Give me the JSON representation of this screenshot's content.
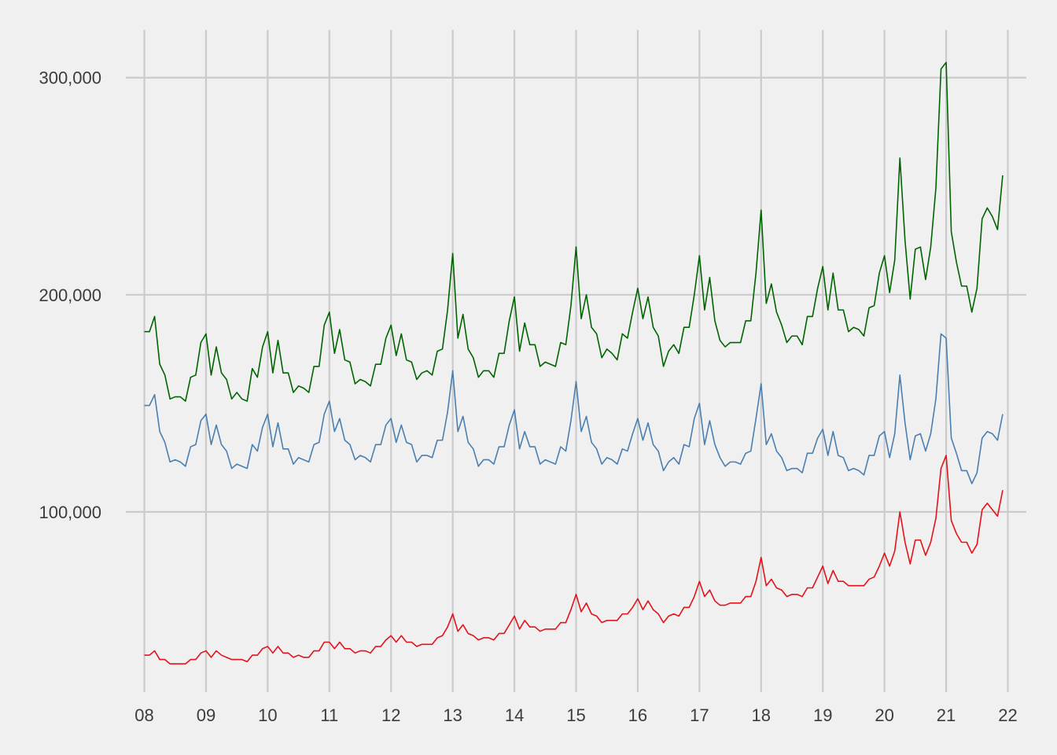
{
  "chart_data": {
    "type": "line",
    "title": "",
    "xlabel": "",
    "ylabel": "",
    "x_start": 2008.0,
    "x_step_months": 1,
    "xlim": [
      2007.7,
      2022.3
    ],
    "ylim": [
      17000,
      322000
    ],
    "x_ticks": [
      {
        "value": 2008,
        "label": "08"
      },
      {
        "value": 2009,
        "label": "09"
      },
      {
        "value": 2010,
        "label": "10"
      },
      {
        "value": 2011,
        "label": "11"
      },
      {
        "value": 2012,
        "label": "12"
      },
      {
        "value": 2013,
        "label": "13"
      },
      {
        "value": 2014,
        "label": "14"
      },
      {
        "value": 2015,
        "label": "15"
      },
      {
        "value": 2016,
        "label": "16"
      },
      {
        "value": 2017,
        "label": "17"
      },
      {
        "value": 2018,
        "label": "18"
      },
      {
        "value": 2019,
        "label": "19"
      },
      {
        "value": 2020,
        "label": "20"
      },
      {
        "value": 2021,
        "label": "21"
      },
      {
        "value": 2022,
        "label": "22"
      }
    ],
    "y_ticks": [
      {
        "value": 100000,
        "label": "100,000"
      },
      {
        "value": 200000,
        "label": "200,000"
      },
      {
        "value": 300000,
        "label": "300,000"
      }
    ],
    "grid": true,
    "legend": "none",
    "series": [
      {
        "color": "#006400",
        "values": [
          183000,
          183000,
          190000,
          168000,
          163000,
          152000,
          153000,
          153000,
          151000,
          162000,
          163000,
          178000,
          182000,
          163000,
          176000,
          164000,
          161000,
          152000,
          155000,
          152000,
          151000,
          166000,
          162000,
          176000,
          183000,
          164000,
          179000,
          164000,
          164000,
          155000,
          158000,
          157000,
          155000,
          167000,
          167000,
          186000,
          192000,
          173000,
          184000,
          170000,
          169000,
          159000,
          161000,
          160000,
          158000,
          168000,
          168000,
          180000,
          186000,
          172000,
          182000,
          170000,
          169000,
          161000,
          164000,
          165000,
          163000,
          174000,
          175000,
          193000,
          219000,
          180000,
          191000,
          175000,
          171000,
          162000,
          165000,
          165000,
          162000,
          173000,
          173000,
          188000,
          199000,
          174000,
          187000,
          177000,
          177000,
          167000,
          169000,
          168000,
          167000,
          178000,
          177000,
          195000,
          222000,
          189000,
          200000,
          185000,
          182000,
          171000,
          175000,
          173000,
          170000,
          182000,
          180000,
          192000,
          203000,
          189000,
          199000,
          185000,
          181000,
          167000,
          174000,
          177000,
          173000,
          185000,
          185000,
          200000,
          218000,
          193000,
          208000,
          188000,
          179000,
          176000,
          178000,
          178000,
          178000,
          188000,
          188000,
          210000,
          239000,
          196000,
          205000,
          192000,
          186000,
          178000,
          181000,
          181000,
          177000,
          190000,
          190000,
          203000,
          213000,
          193000,
          210000,
          193000,
          193000,
          183000,
          185000,
          184000,
          181000,
          194000,
          195000,
          210000,
          218000,
          201000,
          216000,
          263000,
          225000,
          198000,
          221000,
          222000,
          207000,
          222000,
          249000,
          304000,
          307000,
          229000,
          215000,
          204000,
          204000,
          192000,
          203000,
          235000,
          240000,
          236000,
          230000,
          255000
        ]
      },
      {
        "color": "#4a7fb0",
        "values": [
          149000,
          149000,
          154000,
          137000,
          132000,
          123000,
          124000,
          123000,
          121000,
          130000,
          131000,
          142000,
          145000,
          131000,
          140000,
          131000,
          128000,
          120000,
          122000,
          121000,
          120000,
          131000,
          128000,
          139000,
          145000,
          130000,
          141000,
          129000,
          129000,
          122000,
          125000,
          124000,
          123000,
          131000,
          132000,
          145000,
          151000,
          137000,
          143000,
          133000,
          131000,
          124000,
          126000,
          125000,
          123000,
          131000,
          131000,
          140000,
          143000,
          132000,
          140000,
          132000,
          131000,
          123000,
          126000,
          126000,
          125000,
          133000,
          133000,
          146000,
          165000,
          137000,
          144000,
          132000,
          129000,
          121000,
          124000,
          124000,
          122000,
          130000,
          130000,
          140000,
          147000,
          129000,
          137000,
          130000,
          130000,
          122000,
          124000,
          123000,
          122000,
          130000,
          128000,
          142000,
          160000,
          137000,
          144000,
          132000,
          129000,
          122000,
          125000,
          124000,
          122000,
          129000,
          128000,
          136000,
          143000,
          133000,
          141000,
          131000,
          128000,
          119000,
          123000,
          125000,
          122000,
          131000,
          130000,
          143000,
          150000,
          131000,
          142000,
          131000,
          125000,
          121000,
          123000,
          123000,
          122000,
          127000,
          128000,
          143000,
          159000,
          131000,
          136000,
          128000,
          125000,
          119000,
          120000,
          120000,
          118000,
          127000,
          127000,
          134000,
          138000,
          126000,
          137000,
          126000,
          125000,
          119000,
          120000,
          119000,
          117000,
          126000,
          126000,
          135000,
          137000,
          125000,
          136000,
          163000,
          141000,
          124000,
          135000,
          136000,
          128000,
          136000,
          152000,
          182000,
          180000,
          134000,
          127000,
          119000,
          119000,
          113000,
          118000,
          134000,
          137000,
          136000,
          133000,
          145000
        ]
      },
      {
        "color": "#e3121b",
        "values": [
          34000,
          34000,
          36000,
          32000,
          32000,
          30000,
          30000,
          30000,
          30000,
          32000,
          32000,
          35000,
          36000,
          33000,
          36000,
          34000,
          33000,
          32000,
          32000,
          32000,
          31000,
          34000,
          34000,
          37000,
          38000,
          35000,
          38000,
          35000,
          35000,
          33000,
          34000,
          33000,
          33000,
          36000,
          36000,
          40000,
          40000,
          37000,
          40000,
          37000,
          37000,
          35000,
          36000,
          36000,
          35000,
          38000,
          38000,
          41000,
          43000,
          40000,
          43000,
          40000,
          40000,
          38000,
          39000,
          39000,
          39000,
          42000,
          43000,
          47000,
          53000,
          45000,
          48000,
          44000,
          43000,
          41000,
          42000,
          42000,
          41000,
          44000,
          44000,
          48000,
          52000,
          46000,
          50000,
          47000,
          47000,
          45000,
          46000,
          46000,
          46000,
          49000,
          49000,
          55000,
          62000,
          54000,
          58000,
          53000,
          52000,
          49000,
          50000,
          50000,
          50000,
          53000,
          53000,
          56000,
          60000,
          55000,
          59000,
          55000,
          53000,
          49000,
          52000,
          53000,
          52000,
          56000,
          56000,
          61000,
          68000,
          61000,
          64000,
          59000,
          57000,
          57000,
          58000,
          58000,
          58000,
          61000,
          61000,
          68000,
          79000,
          66000,
          69000,
          65000,
          64000,
          61000,
          62000,
          62000,
          61000,
          65000,
          65000,
          70000,
          75000,
          67000,
          73000,
          68000,
          68000,
          66000,
          66000,
          66000,
          66000,
          69000,
          70000,
          75000,
          81000,
          75000,
          82000,
          100000,
          86000,
          76000,
          87000,
          87000,
          80000,
          86000,
          97000,
          120000,
          126000,
          96000,
          90000,
          86000,
          86000,
          81000,
          85000,
          101000,
          104000,
          101000,
          98000,
          110000
        ]
      }
    ]
  }
}
